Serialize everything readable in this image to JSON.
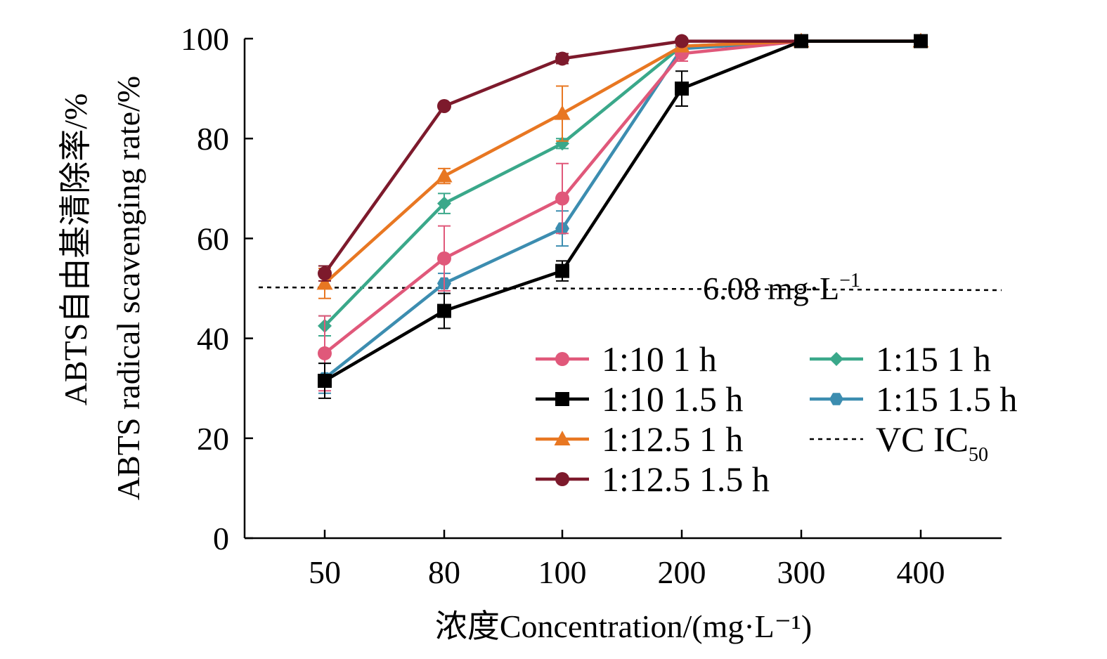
{
  "chart_data": {
    "type": "line",
    "categories": [
      "50",
      "80",
      "100",
      "200",
      "300",
      "400"
    ],
    "xlabel": "浓度Concentration/(mg·L⁻¹)",
    "ylabel_cn": "ABTS自由基清除率/%",
    "ylabel_en": "ABTS radical scavenging rate/%",
    "ylim": [
      0,
      100
    ],
    "yticks": [
      0,
      20,
      40,
      60,
      80,
      100
    ],
    "grid": false,
    "legend_position": "lower-right",
    "series": [
      {
        "name": "1:10 1 h",
        "color": "#e0587a",
        "marker": "circle",
        "values": [
          37,
          56,
          68,
          97,
          99.5,
          99.5
        ],
        "errors": [
          7.5,
          6.5,
          7,
          1.5,
          0.5,
          0.3
        ]
      },
      {
        "name": "1:10 1.5 h",
        "color": "#000000",
        "marker": "square",
        "values": [
          31.5,
          45.5,
          53.5,
          90,
          99.5,
          99.5
        ],
        "errors": [
          3.5,
          3.5,
          2,
          3.5,
          0.5,
          0.3
        ]
      },
      {
        "name": "1:12.5 1 h",
        "color": "#e87722",
        "marker": "triangle",
        "values": [
          51,
          72.5,
          85,
          98.5,
          99.5,
          99.5
        ],
        "errors": [
          3,
          1.5,
          5.5,
          1,
          0.5,
          0.3
        ]
      },
      {
        "name": "1:12.5 1.5 h",
        "color": "#7d1a2c",
        "marker": "circle",
        "values": [
          53,
          86.5,
          96,
          99.5,
          99.5,
          99.5
        ],
        "errors": [
          1.5,
          0.5,
          1,
          0.5,
          0.5,
          0.3
        ]
      },
      {
        "name": "1:15 1 h",
        "color": "#3aa88a",
        "marker": "diamond",
        "values": [
          42.5,
          67,
          79,
          98.5,
          99.5,
          99.5
        ],
        "errors": [
          2,
          2,
          1,
          1,
          0.5,
          0.3
        ]
      },
      {
        "name": "1:15 1.5 h",
        "color": "#3c8db0",
        "marker": "hexagon",
        "values": [
          32,
          51,
          62,
          98,
          99.5,
          99.5
        ],
        "errors": [
          3,
          2,
          3.5,
          1,
          0.5,
          0.3
        ]
      }
    ],
    "reference_line": {
      "name": "VC IC",
      "subscript": "50",
      "y": 49.5,
      "annotation": "6.08 mg·L",
      "annotation_sup": "−1",
      "style": "dashed",
      "color": "#000000"
    }
  }
}
